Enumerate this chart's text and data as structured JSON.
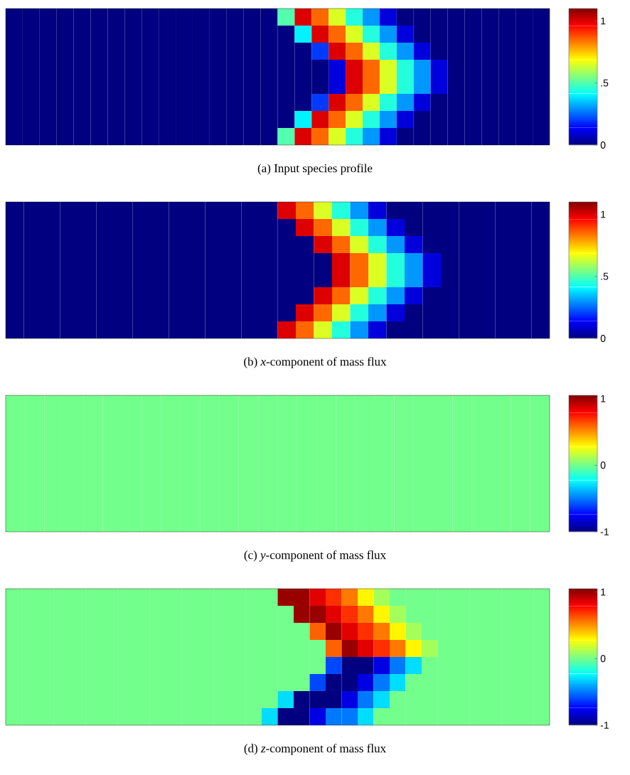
{
  "chart_data": [
    {
      "type": "heatmap",
      "categories": [
        null,
        null,
        null,
        null,
        null,
        null,
        null,
        null,
        null,
        null,
        null,
        null,
        null,
        null,
        null,
        null,
        null,
        null,
        null,
        null,
        null,
        null,
        null,
        null,
        null,
        null,
        null,
        null,
        null,
        null,
        null,
        null
      ],
      "y_categories": [
        null,
        null,
        null,
        null,
        null,
        null,
        null,
        null
      ],
      "cells": [
        [
          0,
          0,
          0,
          0,
          0,
          0,
          0,
          0,
          0,
          0,
          0,
          0,
          0,
          0,
          0,
          0,
          0.5,
          1,
          0.85,
          0.65,
          0.45,
          0.3,
          0.1,
          0,
          0,
          0,
          0,
          0,
          0,
          0,
          0,
          0
        ],
        [
          0,
          0,
          0,
          0,
          0,
          0,
          0,
          0,
          0,
          0,
          0,
          0,
          0,
          0,
          0,
          0,
          0,
          0.4,
          1,
          0.85,
          0.65,
          0.45,
          0.3,
          0.1,
          0,
          0,
          0,
          0,
          0,
          0,
          0,
          0
        ],
        [
          0,
          0,
          0,
          0,
          0,
          0,
          0,
          0,
          0,
          0,
          0,
          0,
          0,
          0,
          0,
          0,
          0,
          0,
          0.2,
          1,
          0.85,
          0.65,
          0.45,
          0.3,
          0.1,
          0,
          0,
          0,
          0,
          0,
          0,
          0
        ],
        [
          0,
          0,
          0,
          0,
          0,
          0,
          0,
          0,
          0,
          0,
          0,
          0,
          0,
          0,
          0,
          0,
          0,
          0,
          0,
          0.1,
          1,
          0.85,
          0.65,
          0.45,
          0.3,
          0.1,
          0,
          0,
          0,
          0,
          0,
          0
        ],
        [
          0,
          0,
          0,
          0,
          0,
          0,
          0,
          0,
          0,
          0,
          0,
          0,
          0,
          0,
          0,
          0,
          0,
          0,
          0,
          0.1,
          1,
          0.85,
          0.65,
          0.45,
          0.3,
          0.1,
          0,
          0,
          0,
          0,
          0,
          0
        ],
        [
          0,
          0,
          0,
          0,
          0,
          0,
          0,
          0,
          0,
          0,
          0,
          0,
          0,
          0,
          0,
          0,
          0,
          0,
          0.2,
          1,
          0.85,
          0.65,
          0.45,
          0.3,
          0.1,
          0,
          0,
          0,
          0,
          0,
          0,
          0
        ],
        [
          0,
          0,
          0,
          0,
          0,
          0,
          0,
          0,
          0,
          0,
          0,
          0,
          0,
          0,
          0,
          0,
          0,
          0.4,
          1,
          0.85,
          0.65,
          0.45,
          0.3,
          0.1,
          0,
          0,
          0,
          0,
          0,
          0,
          0,
          0
        ],
        [
          0,
          0,
          0,
          0,
          0,
          0,
          0,
          0,
          0,
          0,
          0,
          0,
          0,
          0,
          0,
          0,
          0.5,
          1,
          0.85,
          0.65,
          0.45,
          0.3,
          0.1,
          0,
          0,
          0,
          0,
          0,
          0,
          0,
          0,
          0
        ]
      ],
      "clim": [
        0,
        1.1
      ],
      "cticks": [
        0,
        {
          "value": 0.5,
          "label": ".5"
        },
        1
      ],
      "annotations": [
        "(a) Input species profile"
      ]
    },
    {
      "type": "heatmap",
      "categories": [
        null,
        null,
        null,
        null,
        null,
        null,
        null,
        null,
        null,
        null,
        null,
        null,
        null,
        null,
        null,
        null,
        null,
        null,
        null,
        null,
        null,
        null,
        null,
        null,
        null,
        null,
        null,
        null,
        null,
        null
      ],
      "y_categories": [
        null,
        null,
        null,
        null,
        null,
        null,
        null,
        null
      ],
      "cells": [
        [
          0,
          0,
          0,
          0,
          0,
          0,
          0,
          0,
          0,
          0,
          0,
          0,
          0,
          0,
          0,
          1,
          0.85,
          0.65,
          0.45,
          0.3,
          0.1,
          0,
          0,
          0,
          0,
          0,
          0,
          0,
          0,
          0
        ],
        [
          0,
          0,
          0,
          0,
          0,
          0,
          0,
          0,
          0,
          0,
          0,
          0,
          0,
          0,
          0,
          0,
          1,
          0.85,
          0.65,
          0.45,
          0.3,
          0.1,
          0,
          0,
          0,
          0,
          0,
          0,
          0,
          0
        ],
        [
          0,
          0,
          0,
          0,
          0,
          0,
          0,
          0,
          0,
          0,
          0,
          0,
          0,
          0,
          0,
          0,
          0,
          1,
          0.85,
          0.65,
          0.45,
          0.3,
          0.1,
          0,
          0,
          0,
          0,
          0,
          0,
          0
        ],
        [
          0,
          0,
          0,
          0,
          0,
          0,
          0,
          0,
          0,
          0,
          0,
          0,
          0,
          0,
          0,
          0,
          0,
          0,
          1,
          0.85,
          0.65,
          0.45,
          0.3,
          0.1,
          0,
          0,
          0,
          0,
          0,
          0
        ],
        [
          0,
          0,
          0,
          0,
          0,
          0,
          0,
          0,
          0,
          0,
          0,
          0,
          0,
          0,
          0,
          0,
          0,
          0,
          1,
          0.85,
          0.65,
          0.45,
          0.3,
          0.1,
          0,
          0,
          0,
          0,
          0,
          0
        ],
        [
          0,
          0,
          0,
          0,
          0,
          0,
          0,
          0,
          0,
          0,
          0,
          0,
          0,
          0,
          0,
          0,
          0,
          1,
          0.85,
          0.65,
          0.45,
          0.3,
          0.1,
          0,
          0,
          0,
          0,
          0,
          0,
          0
        ],
        [
          0,
          0,
          0,
          0,
          0,
          0,
          0,
          0,
          0,
          0,
          0,
          0,
          0,
          0,
          0,
          0,
          1,
          0.85,
          0.65,
          0.45,
          0.3,
          0.1,
          0,
          0,
          0,
          0,
          0,
          0,
          0,
          0
        ],
        [
          0,
          0,
          0,
          0,
          0,
          0,
          0,
          0,
          0,
          0,
          0,
          0,
          0,
          0,
          0,
          1,
          0.85,
          0.65,
          0.45,
          0.3,
          0.1,
          0,
          0,
          0,
          0,
          0,
          0,
          0,
          0,
          0
        ]
      ],
      "clim": [
        0,
        1.1
      ],
      "cticks": [
        0,
        {
          "value": 0.5,
          "label": ".5"
        },
        1
      ],
      "annotations": [
        "(b) *x*-component of mass flux"
      ]
    },
    {
      "type": "heatmap",
      "categories": [
        null,
        null,
        null,
        null,
        null,
        null,
        null,
        null,
        null,
        null,
        null,
        null,
        null,
        null,
        null,
        null,
        null,
        null,
        null,
        null,
        null,
        null,
        null,
        null,
        null,
        null,
        null,
        null
      ],
      "y_categories": [
        null,
        null,
        null,
        null,
        null,
        null,
        null,
        null
      ],
      "cells": [
        [
          0,
          0,
          0,
          0,
          0,
          0,
          0,
          0,
          0,
          0,
          0,
          0,
          0,
          0,
          0,
          0,
          0,
          0,
          0,
          0,
          0,
          0,
          0,
          0,
          0,
          0,
          0,
          0
        ],
        [
          0,
          0,
          0,
          0,
          0,
          0,
          0,
          0,
          0,
          0,
          0,
          0,
          0,
          0,
          0,
          0,
          0,
          0,
          0,
          0,
          0,
          0,
          0,
          0,
          0,
          0,
          0,
          0
        ],
        [
          0,
          0,
          0,
          0,
          0,
          0,
          0,
          0,
          0,
          0,
          0,
          0,
          0,
          0,
          0,
          0,
          0,
          0,
          0,
          0,
          0,
          0,
          0,
          0,
          0,
          0,
          0,
          0
        ],
        [
          0,
          0,
          0,
          0,
          0,
          0,
          0,
          0,
          0,
          0,
          0,
          0,
          0,
          0,
          0,
          0,
          0,
          0,
          0,
          0,
          0,
          0,
          0,
          0,
          0,
          0,
          0,
          0
        ],
        [
          0,
          0,
          0,
          0,
          0,
          0,
          0,
          0,
          0,
          0,
          0,
          0,
          0,
          0,
          0,
          0,
          0,
          0,
          0,
          0,
          0,
          0,
          0,
          0,
          0,
          0,
          0,
          0
        ],
        [
          0,
          0,
          0,
          0,
          0,
          0,
          0,
          0,
          0,
          0,
          0,
          0,
          0,
          0,
          0,
          0,
          0,
          0,
          0,
          0,
          0,
          0,
          0,
          0,
          0,
          0,
          0,
          0
        ],
        [
          0,
          0,
          0,
          0,
          0,
          0,
          0,
          0,
          0,
          0,
          0,
          0,
          0,
          0,
          0,
          0,
          0,
          0,
          0,
          0,
          0,
          0,
          0,
          0,
          0,
          0,
          0,
          0
        ],
        [
          0,
          0,
          0,
          0,
          0,
          0,
          0,
          0,
          0,
          0,
          0,
          0,
          0,
          0,
          0,
          0,
          0,
          0,
          0,
          0,
          0,
          0,
          0,
          0,
          0,
          0,
          0,
          0
        ]
      ],
      "clim": [
        -1,
        1.05
      ],
      "cticks": [
        -1,
        0,
        1
      ],
      "annotations": [
        "(c) *y*-component of mass flux"
      ]
    },
    {
      "type": "heatmap",
      "categories": [
        null,
        null,
        null,
        null,
        null,
        null,
        null,
        null,
        null,
        null,
        null,
        null,
        null,
        null,
        null,
        null,
        null,
        null,
        null,
        null,
        null,
        null,
        null,
        null,
        null,
        null,
        null,
        null,
        null,
        null,
        null,
        null,
        null,
        null
      ],
      "y_categories": [
        null,
        null,
        null,
        null,
        null,
        null,
        null,
        null
      ],
      "cells": [
        [
          0,
          0,
          0,
          0,
          0,
          0,
          0,
          0,
          0,
          0,
          0,
          0,
          0,
          0,
          0,
          0,
          0,
          1,
          1,
          0.85,
          0.7,
          0.55,
          0.3,
          0.1,
          0,
          0,
          0,
          0,
          0,
          0,
          0,
          0,
          0,
          0
        ],
        [
          0,
          0,
          0,
          0,
          0,
          0,
          0,
          0,
          0,
          0,
          0,
          0,
          0,
          0,
          0,
          0,
          0,
          0,
          1,
          1,
          0.85,
          0.7,
          0.55,
          0.3,
          0.1,
          0,
          0,
          0,
          0,
          0,
          0,
          0,
          0,
          0
        ],
        [
          0,
          0,
          0,
          0,
          0,
          0,
          0,
          0,
          0,
          0,
          0,
          0,
          0,
          0,
          0,
          0,
          0,
          0,
          0,
          0.6,
          1,
          0.85,
          0.7,
          0.55,
          0.3,
          0.1,
          0,
          0,
          0,
          0,
          0,
          0,
          0,
          0
        ],
        [
          0,
          0,
          0,
          0,
          0,
          0,
          0,
          0,
          0,
          0,
          0,
          0,
          0,
          0,
          0,
          0,
          0,
          0,
          0,
          0,
          0.6,
          1,
          0.85,
          0.7,
          0.55,
          0.3,
          0.1,
          0,
          0,
          0,
          0,
          0,
          0,
          0
        ],
        [
          0,
          0,
          0,
          0,
          0,
          0,
          0,
          0,
          0,
          0,
          0,
          0,
          0,
          0,
          0,
          0,
          0,
          0,
          0,
          0,
          -0.6,
          -1,
          -1,
          -0.8,
          -0.5,
          -0.3,
          0,
          0,
          0,
          0,
          0,
          0,
          0,
          0
        ],
        [
          0,
          0,
          0,
          0,
          0,
          0,
          0,
          0,
          0,
          0,
          0,
          0,
          0,
          0,
          0,
          0,
          0,
          0,
          0,
          -0.6,
          -1,
          -1,
          -0.8,
          -0.5,
          -0.3,
          0,
          0,
          0,
          0,
          0,
          0,
          0,
          0,
          0
        ],
        [
          0,
          0,
          0,
          0,
          0,
          0,
          0,
          0,
          0,
          0,
          0,
          0,
          0,
          0,
          0,
          0,
          0,
          -0.3,
          -1,
          -1,
          -1,
          -0.8,
          -0.5,
          -0.3,
          0,
          0,
          0,
          0,
          0,
          0,
          0,
          0,
          0,
          0
        ],
        [
          0,
          0,
          0,
          0,
          0,
          0,
          0,
          0,
          0,
          0,
          0,
          0,
          0,
          0,
          0,
          0,
          -0.3,
          -1,
          -1,
          -0.8,
          -0.5,
          -0.5,
          -0.3,
          0,
          0,
          0,
          0,
          0,
          0,
          0,
          0,
          0,
          0,
          0
        ]
      ],
      "clim": [
        -1,
        1.05
      ],
      "cticks": [
        -1,
        0,
        1
      ],
      "annotations": [
        "(d) *z*-component of mass flux"
      ]
    }
  ]
}
